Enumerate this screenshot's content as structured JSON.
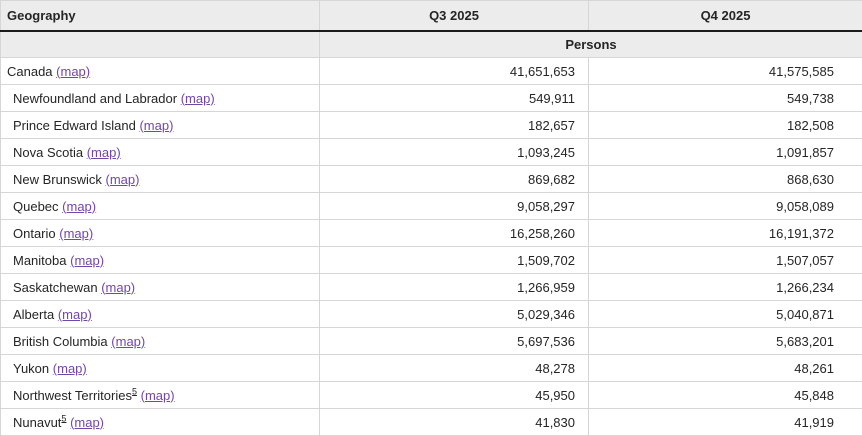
{
  "colors": {
    "header_background": "#ececec",
    "grid_border": "#d6d6d6",
    "header_rule": "#1b1b1b",
    "text": "#252525",
    "visited_link_purple": "#7346aa"
  },
  "table": {
    "columns": {
      "geography_label": "Geography",
      "q3_label": "Q3 2025",
      "q4_label": "Q4 2025"
    },
    "units_label": "Persons",
    "map_link_label": "(map)",
    "rows": [
      {
        "name": "Canada",
        "indent": false,
        "footnote": "",
        "q3": "41,651,653",
        "q4": "41,575,585"
      },
      {
        "name": "Newfoundland and Labrador",
        "indent": true,
        "footnote": "",
        "q3": "549,911",
        "q4": "549,738"
      },
      {
        "name": "Prince Edward Island",
        "indent": true,
        "footnote": "",
        "q3": "182,657",
        "q4": "182,508"
      },
      {
        "name": "Nova Scotia",
        "indent": true,
        "footnote": "",
        "q3": "1,093,245",
        "q4": "1,091,857"
      },
      {
        "name": "New Brunswick",
        "indent": true,
        "footnote": "",
        "q3": "869,682",
        "q4": "868,630"
      },
      {
        "name": "Quebec",
        "indent": true,
        "footnote": "",
        "q3": "9,058,297",
        "q4": "9,058,089"
      },
      {
        "name": "Ontario",
        "indent": true,
        "footnote": "",
        "q3": "16,258,260",
        "q4": "16,191,372"
      },
      {
        "name": "Manitoba",
        "indent": true,
        "footnote": "",
        "q3": "1,509,702",
        "q4": "1,507,057"
      },
      {
        "name": "Saskatchewan",
        "indent": true,
        "footnote": "",
        "q3": "1,266,959",
        "q4": "1,266,234"
      },
      {
        "name": "Alberta",
        "indent": true,
        "footnote": "",
        "q3": "5,029,346",
        "q4": "5,040,871"
      },
      {
        "name": "British Columbia",
        "indent": true,
        "footnote": "",
        "q3": "5,697,536",
        "q4": "5,683,201"
      },
      {
        "name": "Yukon",
        "indent": true,
        "footnote": "",
        "q3": "48,278",
        "q4": "48,261"
      },
      {
        "name": "Northwest Territories",
        "indent": true,
        "footnote": "5",
        "q3": "45,950",
        "q4": "45,848"
      },
      {
        "name": "Nunavut",
        "indent": true,
        "footnote": "5",
        "q3": "41,830",
        "q4": "41,919"
      }
    ]
  }
}
